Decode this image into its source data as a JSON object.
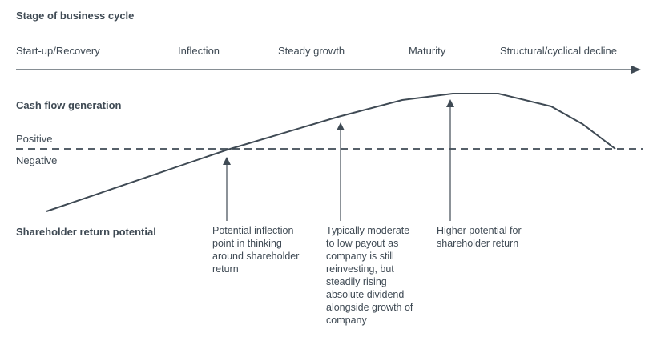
{
  "title": "Stage of business cycle",
  "stages": [
    "Start-up/Recovery",
    "Inflection",
    "Steady growth",
    "Maturity",
    "Structural/cyclical decline"
  ],
  "cash_flow_label": "Cash flow generation",
  "positive_label": "Positive",
  "negative_label": "Negative",
  "shareholder_label": "Shareholder return potential",
  "annotations": [
    {
      "lines": [
        "Potential inflection",
        "point in thinking",
        "around shareholder",
        "return"
      ]
    },
    {
      "lines": [
        "Typically moderate",
        "to low payout as",
        "company is still",
        "reinvesting, but",
        "steadily rising",
        "absolute dividend",
        "alongside growth of",
        "company"
      ]
    },
    {
      "lines": [
        "Higher potential for",
        "shareholder return"
      ]
    }
  ],
  "colors": {
    "line": "#3f4a54",
    "text": "#3f4a54"
  }
}
